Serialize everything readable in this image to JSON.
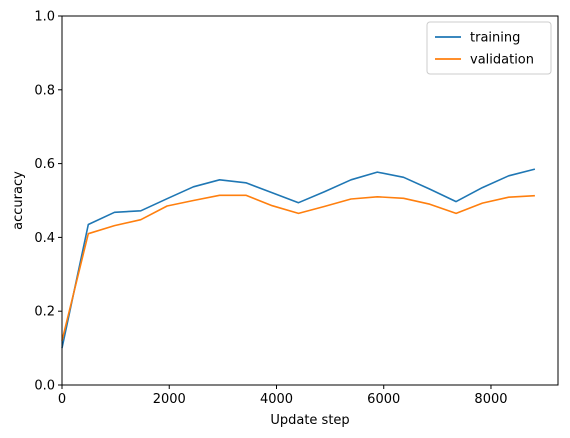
{
  "chart_data": {
    "type": "line",
    "title": "",
    "xlabel": "Update step",
    "ylabel": "accuracy",
    "xlim": [
      0,
      9250
    ],
    "ylim": [
      0.0,
      1.0
    ],
    "xticks": [
      0,
      2000,
      4000,
      6000,
      8000
    ],
    "xtick_labels": [
      "0",
      "2000",
      "4000",
      "6000",
      "8000"
    ],
    "yticks": [
      0.0,
      0.2,
      0.4,
      0.6,
      0.8,
      1.0
    ],
    "ytick_labels": [
      "0.0",
      "0.2",
      "0.4",
      "0.6",
      "0.8",
      "1.0"
    ],
    "grid": false,
    "legend_position": "top-right",
    "x": [
      0,
      490,
      980,
      1470,
      1960,
      2450,
      2940,
      3430,
      3920,
      4410,
      4900,
      5390,
      5880,
      6370,
      6860,
      7350,
      7840,
      8330,
      8820
    ],
    "series": [
      {
        "name": "training",
        "color": "#1f77b4",
        "values": [
          0.1,
          0.435,
          0.468,
          0.472,
          0.505,
          0.537,
          0.556,
          0.548,
          0.521,
          0.494,
          0.524,
          0.556,
          0.577,
          0.563,
          0.531,
          0.497,
          0.535,
          0.567,
          0.585
        ]
      },
      {
        "name": "validation",
        "color": "#ff7f0e",
        "values": [
          0.12,
          0.41,
          0.432,
          0.448,
          0.485,
          0.5,
          0.514,
          0.514,
          0.486,
          0.465,
          0.484,
          0.504,
          0.51,
          0.506,
          0.49,
          0.465,
          0.493,
          0.509,
          0.513
        ]
      }
    ]
  }
}
